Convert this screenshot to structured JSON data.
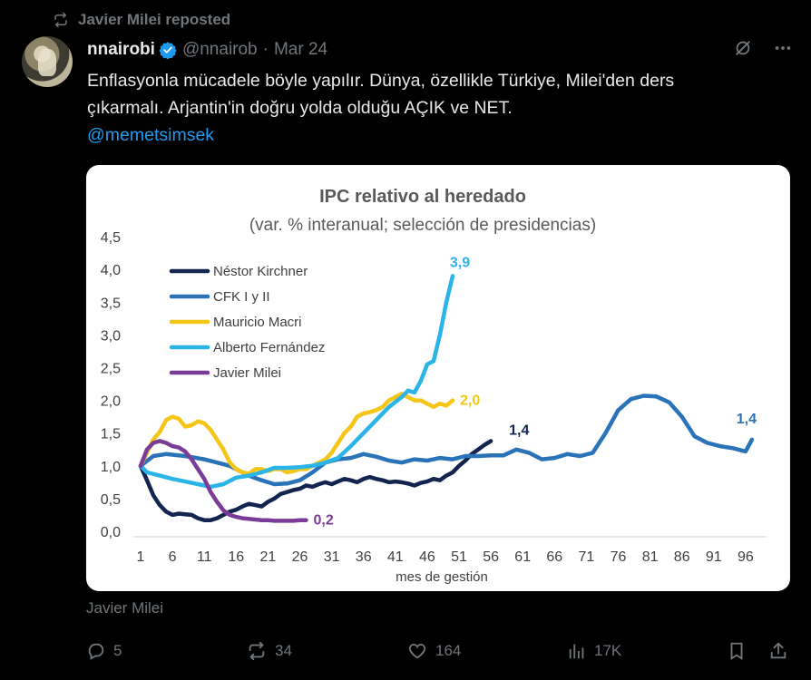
{
  "repost": {
    "label": "Javier Milei reposted"
  },
  "tweet": {
    "author_name": "nnairobi",
    "handle": "@nnairob",
    "separator": "·",
    "date": "Mar 24",
    "text_line1": "Enflasyonla mücadele böyle yapılır. Dünya, özellikle Türkiye, Milei'den ders",
    "text_line2": "çıkarmalı. Arjantin'in doğru yolda olduğu AÇIK ve NET.",
    "mention": "@memetsimsek",
    "attribution": "Javier Milei"
  },
  "actions": {
    "replies": "5",
    "reposts": "34",
    "likes": "164",
    "views": "17K"
  },
  "colors": {
    "accent": "#1d9bf0",
    "muted": "#71767b",
    "text": "#e7e9ea",
    "background": "#000000"
  },
  "icons": [
    "repost-icon",
    "verified-icon",
    "grok-icon",
    "more-icon",
    "reply-icon",
    "like-icon",
    "views-icon",
    "bookmark-icon",
    "share-icon"
  ],
  "chart_data": {
    "type": "line",
    "title": "IPC relativo al heredado",
    "subtitle": "(var. % interanual; selección de presidencias)",
    "xlabel": "mes de gestión",
    "ylabel": "",
    "xlim": [
      1,
      99
    ],
    "ylim": [
      0,
      4.5
    ],
    "x_ticks": [
      "1",
      "6",
      "11",
      "16",
      "21",
      "26",
      "31",
      "36",
      "41",
      "46",
      "51",
      "56",
      "61",
      "66",
      "71",
      "76",
      "81",
      "86",
      "91",
      "96"
    ],
    "y_ticks": [
      "0,0",
      "0,5",
      "1,0",
      "1,5",
      "2,0",
      "2,5",
      "3,0",
      "3,5",
      "4,0",
      "4,5"
    ],
    "legend_position": "top-left",
    "grid": false,
    "series": [
      {
        "name": "Néstor Kirchner",
        "color": "#13244f",
        "end_label": "1,4",
        "x": [
          1,
          2,
          3,
          4,
          5,
          6,
          7,
          8,
          9,
          10,
          11,
          12,
          13,
          14,
          15,
          16,
          17,
          18,
          19,
          20,
          21,
          22,
          23,
          24,
          25,
          26,
          27,
          28,
          29,
          30,
          31,
          32,
          33,
          34,
          35,
          36,
          37,
          38,
          39,
          40,
          41,
          42,
          43,
          44,
          45,
          46,
          47,
          48,
          49,
          50,
          51,
          52,
          53,
          54,
          55,
          56
        ],
        "y": [
          1.0,
          0.78,
          0.55,
          0.4,
          0.3,
          0.25,
          0.27,
          0.26,
          0.25,
          0.2,
          0.17,
          0.17,
          0.2,
          0.25,
          0.3,
          0.33,
          0.38,
          0.42,
          0.4,
          0.38,
          0.45,
          0.5,
          0.57,
          0.6,
          0.63,
          0.65,
          0.7,
          0.68,
          0.72,
          0.75,
          0.72,
          0.76,
          0.8,
          0.78,
          0.75,
          0.8,
          0.83,
          0.8,
          0.78,
          0.75,
          0.76,
          0.75,
          0.73,
          0.7,
          0.74,
          0.76,
          0.8,
          0.78,
          0.85,
          0.9,
          1.0,
          1.08,
          1.18,
          1.25,
          1.32,
          1.38
        ]
      },
      {
        "name": "CFK I y II",
        "color": "#2a73b8",
        "end_label": "1,4",
        "x": [
          1,
          3,
          5,
          8,
          11,
          13,
          15,
          18,
          20,
          22,
          24,
          26,
          28,
          30,
          32,
          34,
          36,
          38,
          40,
          42,
          44,
          46,
          48,
          50,
          52,
          54,
          56,
          58,
          60,
          62,
          64,
          66,
          68,
          70,
          72,
          74,
          76,
          78,
          80,
          82,
          84,
          86,
          88,
          90,
          92,
          94,
          96,
          97
        ],
        "y": [
          1.0,
          1.15,
          1.18,
          1.15,
          1.1,
          1.05,
          1.0,
          0.85,
          0.78,
          0.72,
          0.73,
          0.78,
          0.9,
          1.05,
          1.1,
          1.12,
          1.18,
          1.14,
          1.08,
          1.05,
          1.1,
          1.08,
          1.12,
          1.1,
          1.15,
          1.15,
          1.16,
          1.16,
          1.25,
          1.2,
          1.1,
          1.12,
          1.18,
          1.15,
          1.2,
          1.5,
          1.85,
          2.02,
          2.07,
          2.06,
          1.97,
          1.75,
          1.45,
          1.35,
          1.3,
          1.27,
          1.22,
          1.4
        ]
      },
      {
        "name": "Mauricio Macri",
        "color": "#f5c518",
        "end_label": "2,0",
        "x": [
          1,
          2,
          3,
          4,
          5,
          6,
          7,
          8,
          9,
          10,
          11,
          12,
          13,
          14,
          15,
          16,
          17,
          18,
          19,
          20,
          21,
          22,
          23,
          24,
          25,
          26,
          27,
          28,
          29,
          30,
          31,
          32,
          33,
          34,
          35,
          36,
          37,
          38,
          39,
          40,
          41,
          42,
          43,
          44,
          45,
          46,
          47,
          48,
          49,
          50
        ],
        "y": [
          1.0,
          1.2,
          1.4,
          1.52,
          1.7,
          1.75,
          1.72,
          1.6,
          1.62,
          1.68,
          1.65,
          1.55,
          1.4,
          1.25,
          1.05,
          0.95,
          0.9,
          0.88,
          0.95,
          0.95,
          0.92,
          0.95,
          0.95,
          0.9,
          0.92,
          0.95,
          0.95,
          1.0,
          1.05,
          1.1,
          1.2,
          1.35,
          1.5,
          1.6,
          1.75,
          1.8,
          1.82,
          1.85,
          1.9,
          2.0,
          2.05,
          2.1,
          2.05,
          2.0,
          2.0,
          1.95,
          1.9,
          1.95,
          1.92,
          2.0
        ]
      },
      {
        "name": "Alberto Fernández",
        "color": "#2bb4e8",
        "end_label": "3,9",
        "x": [
          1,
          2,
          4,
          6,
          8,
          10,
          12,
          14,
          16,
          18,
          20,
          22,
          24,
          26,
          28,
          30,
          32,
          34,
          36,
          38,
          40,
          42,
          43,
          44,
          45,
          46,
          47,
          48,
          49,
          50
        ],
        "y": [
          1.0,
          0.9,
          0.85,
          0.8,
          0.76,
          0.72,
          0.68,
          0.72,
          0.82,
          0.85,
          0.9,
          0.97,
          0.97,
          0.98,
          1.0,
          1.05,
          1.12,
          1.3,
          1.5,
          1.7,
          1.9,
          2.05,
          2.15,
          2.12,
          2.3,
          2.55,
          2.6,
          3.0,
          3.5,
          3.9
        ]
      },
      {
        "name": "Javier Milei",
        "color": "#7a3c96",
        "end_label": "0,2",
        "x": [
          1,
          2,
          3,
          4,
          5,
          6,
          7,
          8,
          9,
          10,
          11,
          12,
          13,
          14,
          15,
          16,
          17,
          18,
          19,
          20,
          21,
          22,
          23,
          24,
          25,
          26,
          27
        ],
        "y": [
          1.0,
          1.25,
          1.35,
          1.38,
          1.35,
          1.3,
          1.28,
          1.22,
          1.1,
          0.95,
          0.8,
          0.6,
          0.45,
          0.32,
          0.25,
          0.22,
          0.2,
          0.19,
          0.18,
          0.17,
          0.17,
          0.16,
          0.16,
          0.16,
          0.16,
          0.17,
          0.17
        ]
      }
    ]
  }
}
